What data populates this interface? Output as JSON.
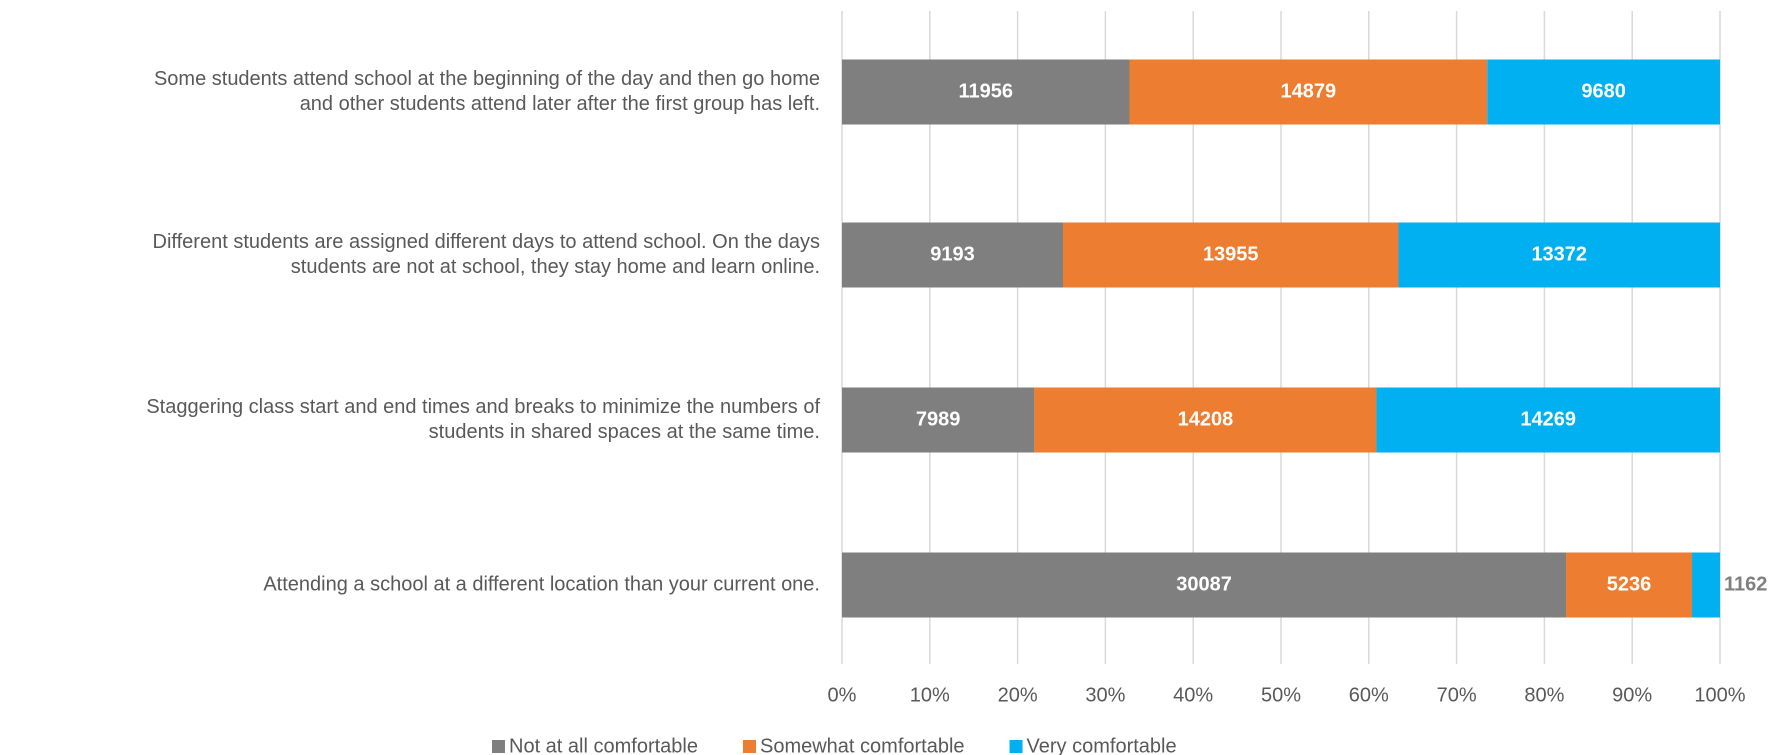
{
  "chart_data": {
    "type": "bar",
    "orientation": "horizontal",
    "stacking": "percent",
    "categories": [
      [
        "Some students attend school at the beginning of the day and then go home",
        "and other students attend later after the first group has left."
      ],
      [
        "Different students are assigned different days to attend school. On the days",
        "students are not at school, they stay home and learn online."
      ],
      [
        "Staggering class start and end times and breaks to minimize the numbers of",
        "students in shared spaces at the same time."
      ],
      [
        "Attending a school at a different location than your current one."
      ]
    ],
    "series": [
      {
        "name": "Not at all comfortable",
        "color": "#7f7f7f",
        "values": [
          11956,
          9193,
          7989,
          30087
        ]
      },
      {
        "name": "Somewhat comfortable",
        "color": "#ed7d31",
        "values": [
          14879,
          13955,
          14208,
          5236
        ]
      },
      {
        "name": "Very comfortable",
        "color": "#00b0f0",
        "values": [
          9680,
          13372,
          14269,
          1162
        ]
      }
    ],
    "xlim": [
      0,
      100
    ],
    "xticks": [
      {
        "value": 0,
        "label": "0%"
      },
      {
        "value": 10,
        "label": "10%"
      },
      {
        "value": 20,
        "label": "20%"
      },
      {
        "value": 30,
        "label": "30%"
      },
      {
        "value": 40,
        "label": "40%"
      },
      {
        "value": 50,
        "label": "50%"
      },
      {
        "value": 60,
        "label": "60%"
      },
      {
        "value": 70,
        "label": "70%"
      },
      {
        "value": 80,
        "label": "80%"
      },
      {
        "value": 90,
        "label": "90%"
      },
      {
        "value": 100,
        "label": "100%"
      }
    ],
    "grid": true,
    "legend": "bottom"
  }
}
